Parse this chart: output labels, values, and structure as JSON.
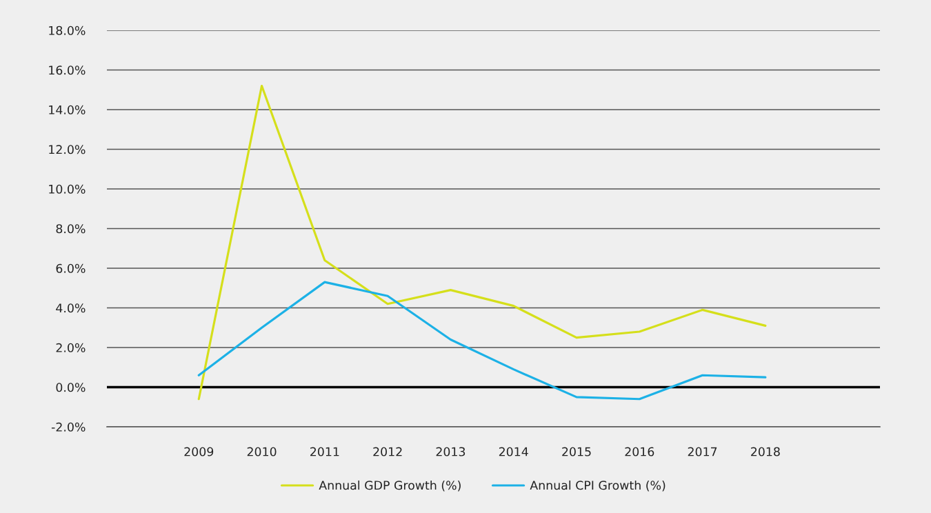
{
  "chart_data": {
    "type": "line",
    "categories": [
      "2009",
      "2010",
      "2011",
      "2012",
      "2013",
      "2014",
      "2015",
      "2016",
      "2017",
      "2018"
    ],
    "series": [
      {
        "name": "Annual GDP Growth (%)",
        "color": "#d5df1b",
        "values": [
          -0.6,
          15.2,
          6.4,
          4.2,
          4.9,
          4.1,
          2.5,
          2.8,
          3.9,
          3.1
        ]
      },
      {
        "name": "Annual CPI Growth (%)",
        "color": "#1cb1e6",
        "values": [
          0.6,
          3.0,
          5.3,
          4.6,
          2.4,
          0.9,
          -0.5,
          -0.6,
          0.6,
          0.5
        ]
      }
    ],
    "ylim": [
      -2,
      18
    ],
    "yticks": [
      {
        "value": -2,
        "label": "-2.0%"
      },
      {
        "value": 0,
        "label": "0.0%"
      },
      {
        "value": 2,
        "label": "2.0%"
      },
      {
        "value": 4,
        "label": "4.0%"
      },
      {
        "value": 6,
        "label": "6.0%"
      },
      {
        "value": 8,
        "label": "8.0%"
      },
      {
        "value": 10,
        "label": "10.0%"
      },
      {
        "value": 12,
        "label": "12.0%"
      },
      {
        "value": 14,
        "label": "14.0%"
      },
      {
        "value": 16,
        "label": "16.0%"
      },
      {
        "value": 18,
        "label": "18.0%"
      }
    ],
    "ref_lines": [
      {
        "axis": "y",
        "value": 0,
        "color": "#000000"
      }
    ],
    "grid": "y",
    "legend": "bottom",
    "marker": "none",
    "line_style": "solid"
  }
}
